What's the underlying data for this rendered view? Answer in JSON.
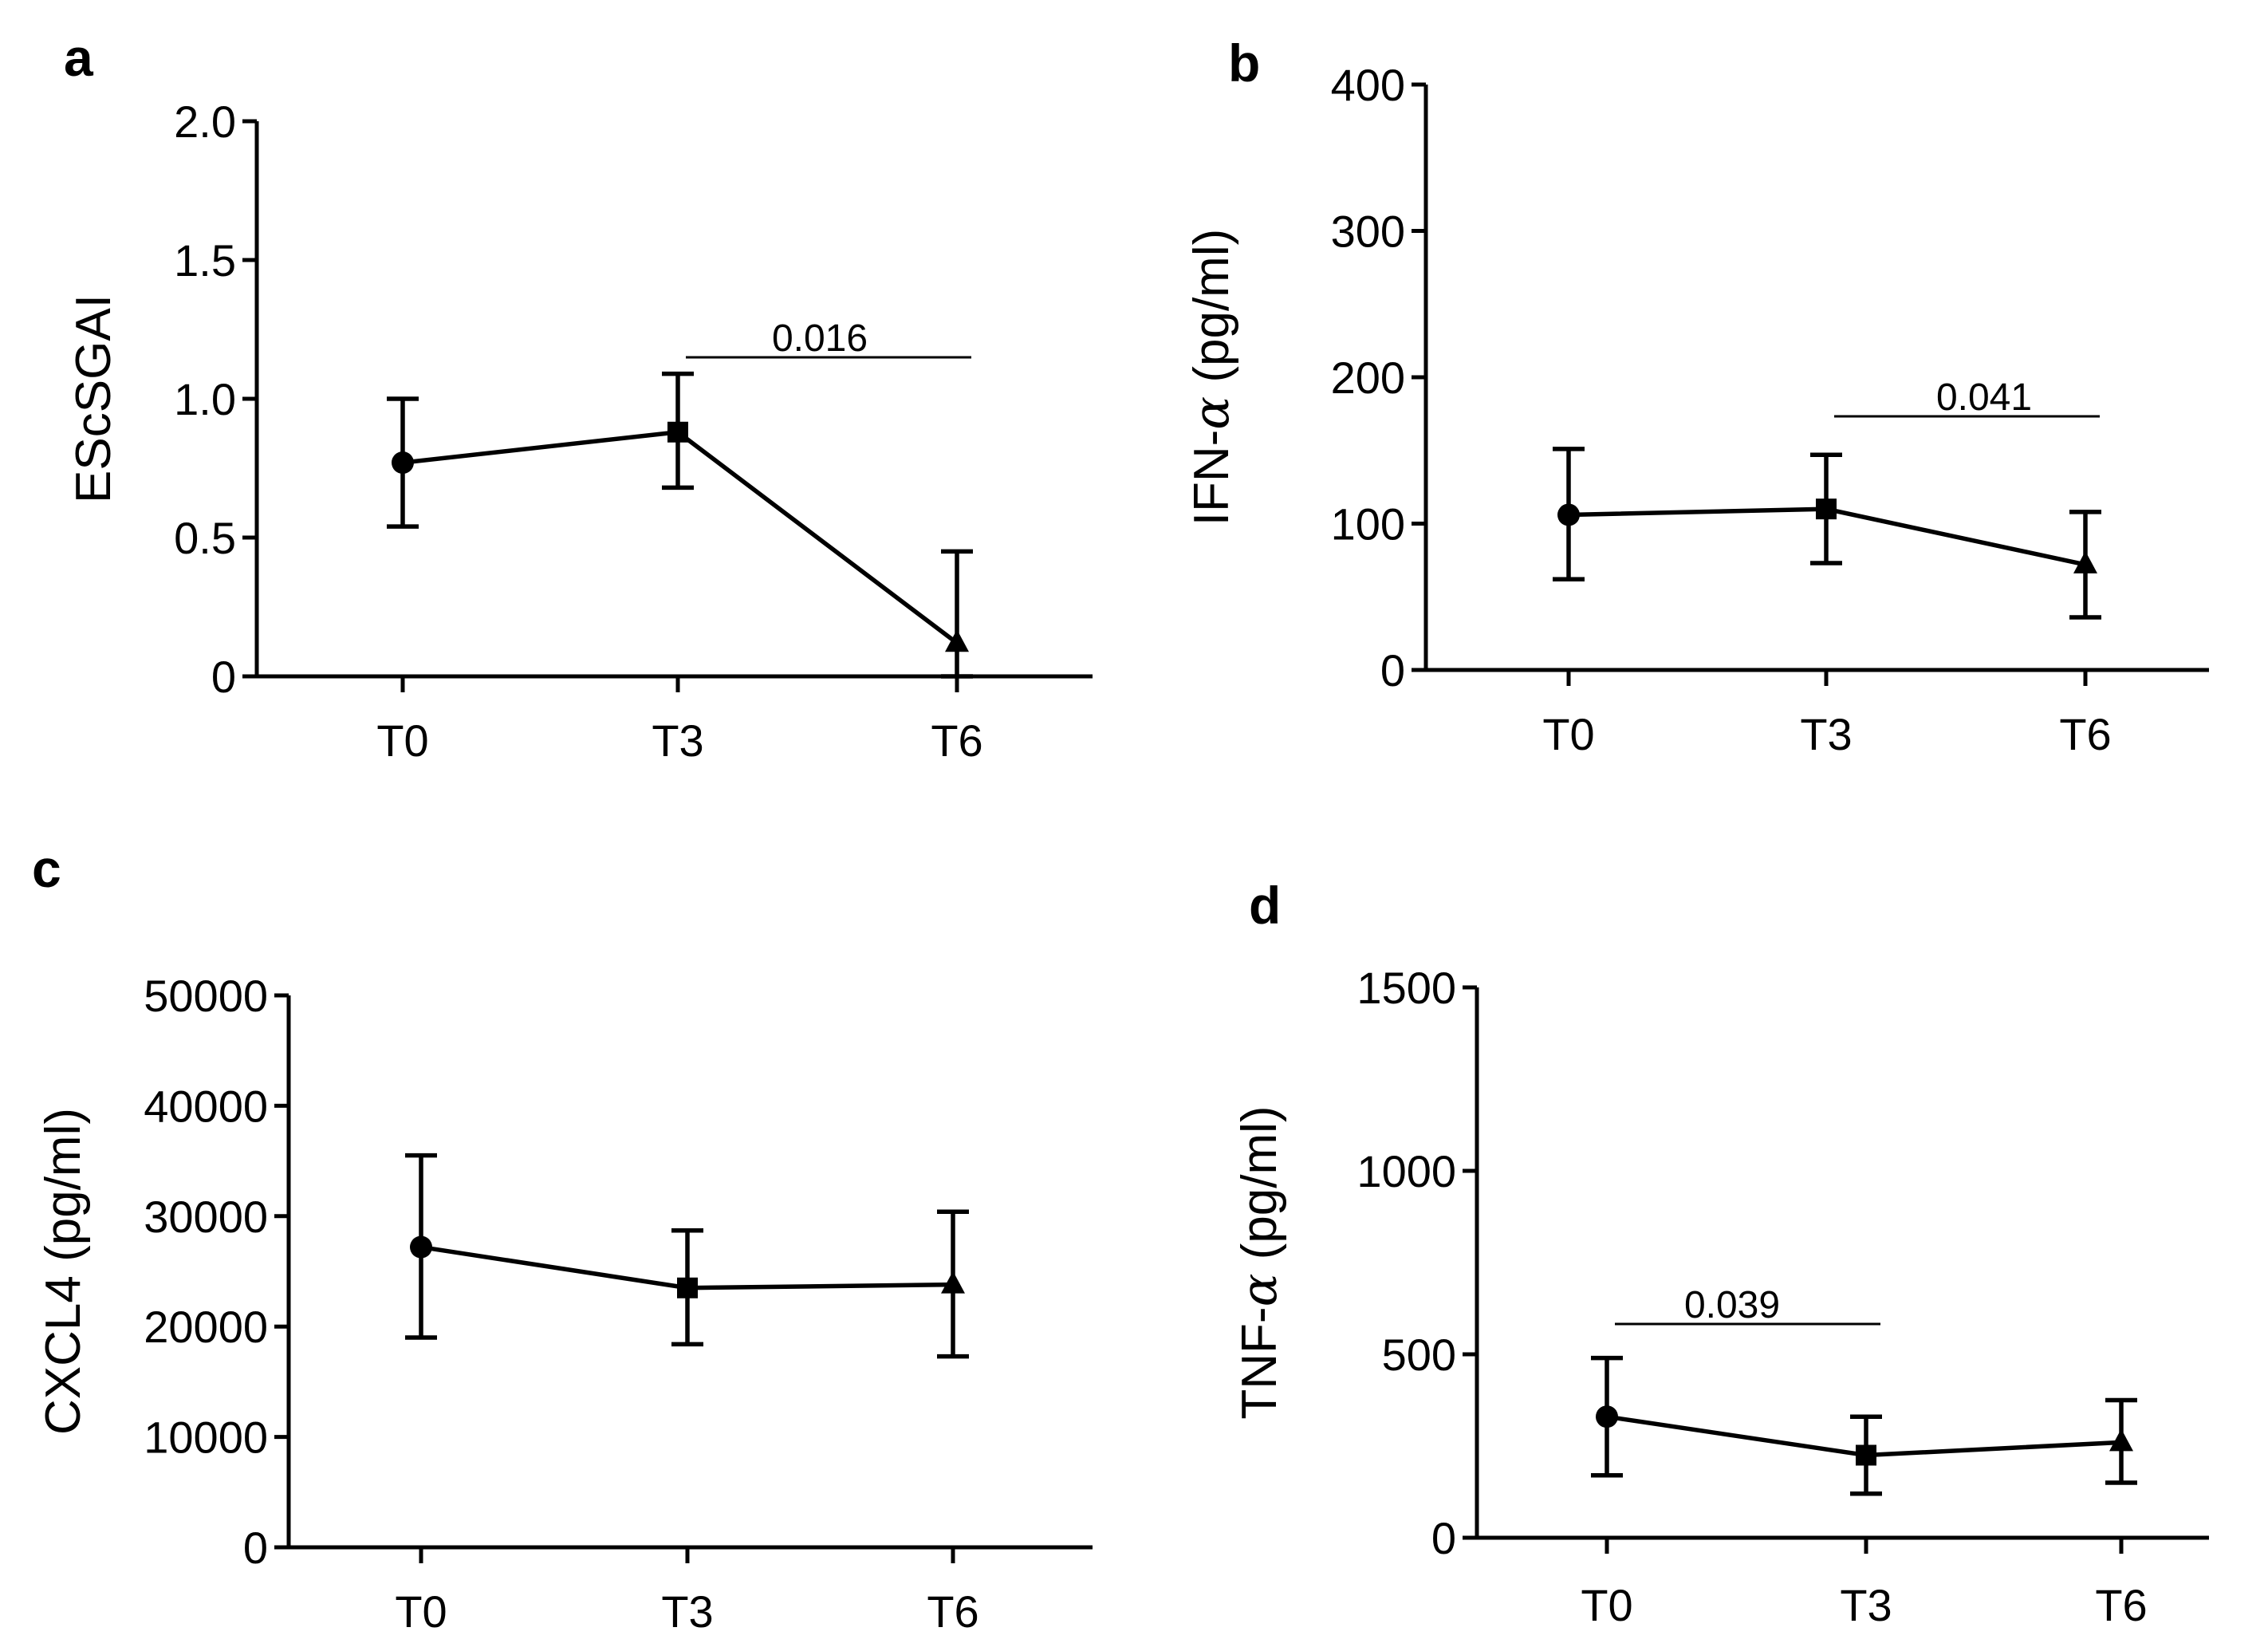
{
  "chart_data": [
    {
      "panel": "a",
      "type": "line",
      "categories": [
        "T0",
        "T3",
        "T6"
      ],
      "values": [
        0.77,
        0.88,
        0.12
      ],
      "error": [
        [
          0.54,
          1.0
        ],
        [
          0.68,
          1.09
        ],
        [
          0.0,
          0.45
        ]
      ],
      "markers": [
        "circle",
        "square",
        "triangle"
      ],
      "ylabel": "EScSGAI",
      "ylim": [
        0,
        2.0
      ],
      "yticks": [
        0,
        0.5,
        1.0,
        1.5,
        2.0
      ],
      "ytick_labels": [
        "0",
        "0.5",
        "1.0",
        "1.5",
        "2.0"
      ],
      "significance": [
        {
          "from": "T3",
          "to": "T6",
          "label": "0.016"
        }
      ]
    },
    {
      "panel": "b",
      "type": "line",
      "categories": [
        "T0",
        "T3",
        "T6"
      ],
      "values": [
        106,
        110,
        72
      ],
      "error": [
        [
          62,
          151
        ],
        [
          73,
          147
        ],
        [
          36,
          108
        ]
      ],
      "markers": [
        "circle",
        "square",
        "triangle"
      ],
      "ylabel": "IFN-α (pg/ml)",
      "ylabel_prefix": "IFN-",
      "ylabel_greek": "α",
      "ylabel_suffix": " (pg/ml)",
      "ylim": [
        0,
        400
      ],
      "yticks": [
        0,
        100,
        200,
        300,
        400
      ],
      "ytick_labels": [
        "0",
        "100",
        "200",
        "300",
        "400"
      ],
      "significance": [
        {
          "from": "T3",
          "to": "T6",
          "label": "0.041"
        }
      ]
    },
    {
      "panel": "c",
      "type": "line",
      "categories": [
        "T0",
        "T3",
        "T6"
      ],
      "values": [
        27200,
        23500,
        23800
      ],
      "error": [
        [
          19000,
          35500
        ],
        [
          18400,
          28700
        ],
        [
          17300,
          30400
        ]
      ],
      "markers": [
        "circle",
        "square",
        "triangle"
      ],
      "ylabel": "CXCL4 (pg/ml)",
      "ylim": [
        0,
        50000
      ],
      "yticks": [
        0,
        10000,
        20000,
        30000,
        40000,
        50000
      ],
      "ytick_labels": [
        "0",
        "10000",
        "20000",
        "30000",
        "40000",
        "50000"
      ],
      "significance": []
    },
    {
      "panel": "d",
      "type": "line",
      "categories": [
        "T0",
        "T3",
        "T6"
      ],
      "values": [
        330,
        225,
        260
      ],
      "error": [
        [
          170,
          490
        ],
        [
          120,
          330
        ],
        [
          150,
          375
        ]
      ],
      "markers": [
        "circle",
        "square",
        "triangle"
      ],
      "ylabel": "TNF-α (pg/ml)",
      "ylabel_prefix": "TNF-",
      "ylabel_greek": "α",
      "ylabel_suffix": " (pg/ml)",
      "ylim": [
        0,
        1500
      ],
      "yticks": [
        0,
        500,
        1000,
        1500
      ],
      "ytick_labels": [
        "0",
        "500",
        "1000",
        "1500"
      ],
      "significance": [
        {
          "from": "T0",
          "to": "T3",
          "label": "0.039"
        }
      ]
    }
  ]
}
